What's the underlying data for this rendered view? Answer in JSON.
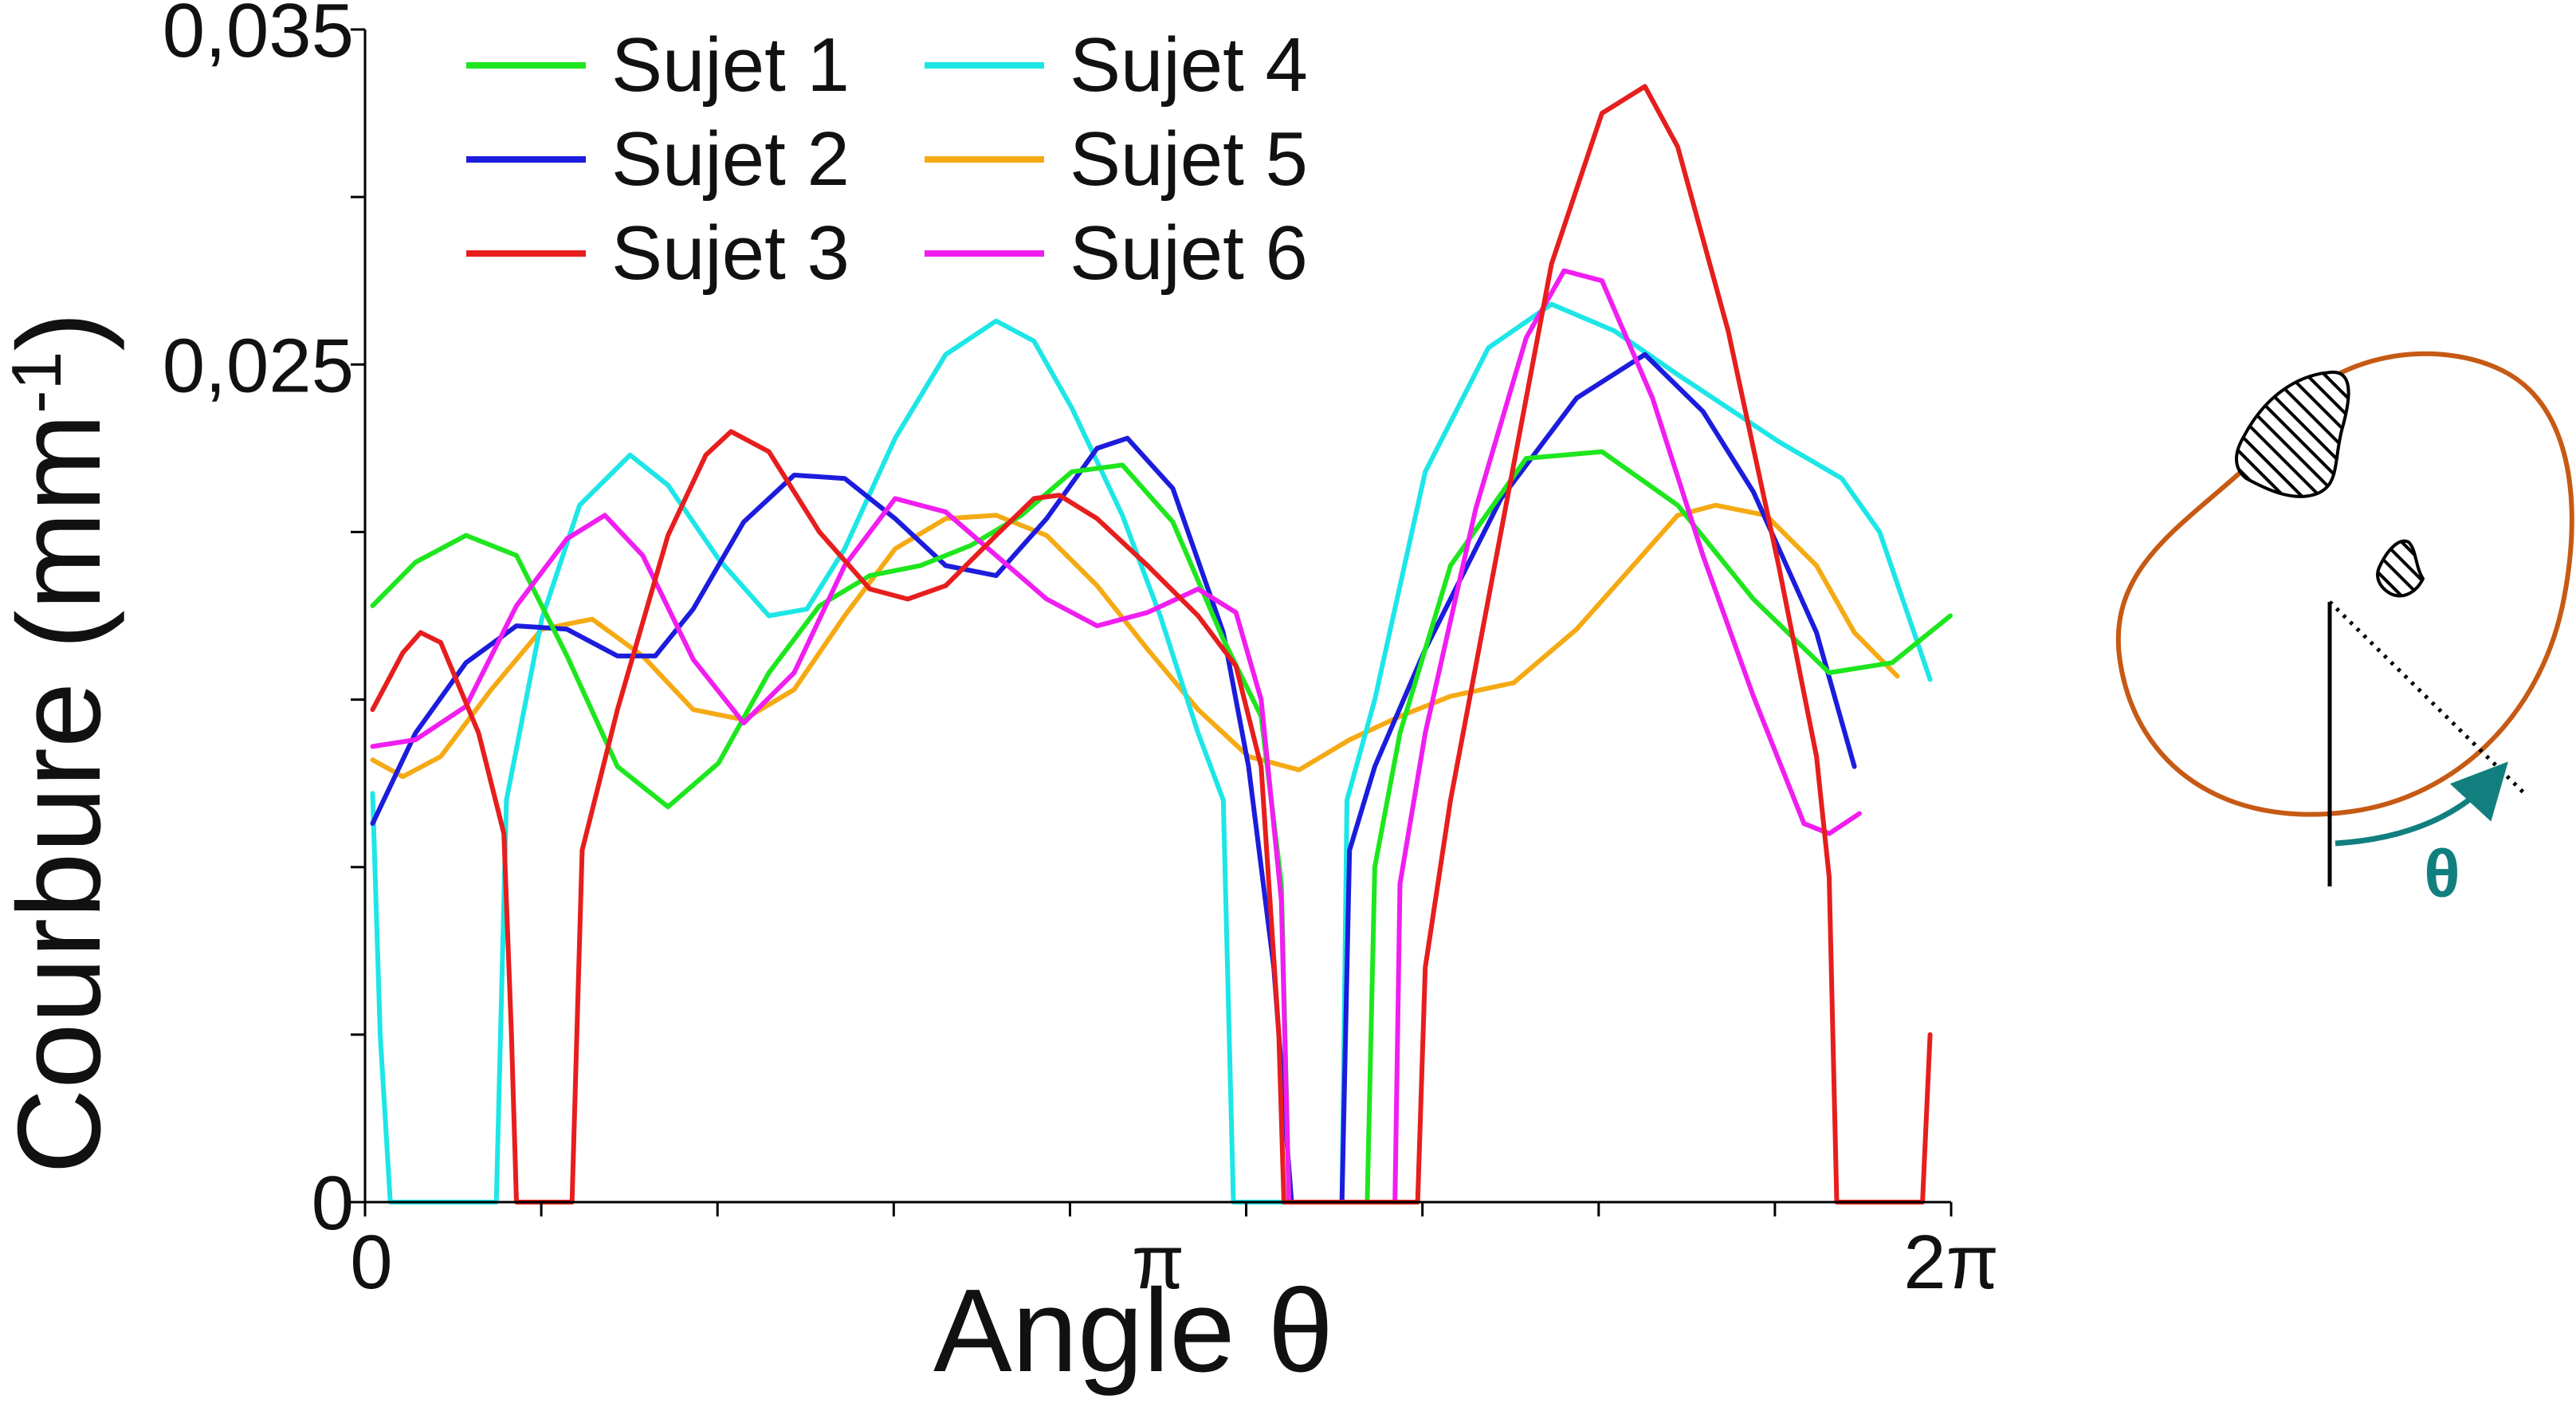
{
  "chart_data": {
    "type": "line",
    "xlabel": "Angle θ",
    "ylabel": "Courbure (mm",
    "ylabel_sup": "-1",
    "ylabel_close": ")",
    "xlim": [
      0,
      6.2832
    ],
    "ylim": [
      0,
      0.035
    ],
    "x_ticks": [
      {
        "value": 0,
        "label": "0"
      },
      {
        "value": 3.1416,
        "label": "π"
      },
      {
        "value": 6.2832,
        "label": "2π"
      }
    ],
    "y_ticks": [
      {
        "value": 0,
        "label": "0"
      },
      {
        "value": 0.025,
        "label": "0,025"
      },
      {
        "value": 0.035,
        "label": "0,035"
      }
    ],
    "legend_position": "top-left",
    "grid": false,
    "series": [
      {
        "name": "Sujet 1",
        "color": "#1ee61e",
        "points": [
          [
            0.03,
            0.0178
          ],
          [
            0.2,
            0.0191
          ],
          [
            0.4,
            0.0199
          ],
          [
            0.6,
            0.0193
          ],
          [
            0.8,
            0.0163
          ],
          [
            1.0,
            0.013
          ],
          [
            1.2,
            0.0118
          ],
          [
            1.4,
            0.0131
          ],
          [
            1.6,
            0.0158
          ],
          [
            1.8,
            0.0178
          ],
          [
            2.0,
            0.0187
          ],
          [
            2.2,
            0.019
          ],
          [
            2.4,
            0.0196
          ],
          [
            2.6,
            0.0205
          ],
          [
            2.8,
            0.0218
          ],
          [
            3.0,
            0.022
          ],
          [
            3.2,
            0.0203
          ],
          [
            3.4,
            0.0168
          ],
          [
            3.55,
            0.0145
          ],
          [
            3.63,
            0.0095
          ],
          [
            3.66,
            0
          ],
          [
            3.97,
            0
          ],
          [
            4.0,
            0.01
          ],
          [
            4.1,
            0.014
          ],
          [
            4.3,
            0.019
          ],
          [
            4.6,
            0.0222
          ],
          [
            4.9,
            0.0224
          ],
          [
            5.2,
            0.0208
          ],
          [
            5.5,
            0.018
          ],
          [
            5.8,
            0.0158
          ],
          [
            6.05,
            0.0161
          ],
          [
            6.28,
            0.0175
          ]
        ]
      },
      {
        "name": "Sujet 2",
        "color": "#1c1cdc",
        "points": [
          [
            0.03,
            0.0113
          ],
          [
            0.2,
            0.014
          ],
          [
            0.4,
            0.0161
          ],
          [
            0.6,
            0.0172
          ],
          [
            0.8,
            0.0171
          ],
          [
            1.0,
            0.0163
          ],
          [
            1.15,
            0.0163
          ],
          [
            1.3,
            0.0177
          ],
          [
            1.5,
            0.0203
          ],
          [
            1.7,
            0.0217
          ],
          [
            1.9,
            0.0216
          ],
          [
            2.1,
            0.0204
          ],
          [
            2.3,
            0.019
          ],
          [
            2.5,
            0.0187
          ],
          [
            2.7,
            0.0204
          ],
          [
            2.9,
            0.0225
          ],
          [
            3.02,
            0.0228
          ],
          [
            3.2,
            0.0213
          ],
          [
            3.4,
            0.017
          ],
          [
            3.5,
            0.013
          ],
          [
            3.6,
            0.007
          ],
          [
            3.67,
            0
          ],
          [
            3.87,
            0
          ],
          [
            3.9,
            0.0105
          ],
          [
            4.0,
            0.013
          ],
          [
            4.2,
            0.0165
          ],
          [
            4.5,
            0.021
          ],
          [
            4.8,
            0.024
          ],
          [
            5.07,
            0.0253
          ],
          [
            5.3,
            0.0236
          ],
          [
            5.5,
            0.0212
          ],
          [
            5.75,
            0.017
          ],
          [
            5.9,
            0.013
          ]
        ]
      },
      {
        "name": "Sujet 3",
        "color": "#e61e1e",
        "points": [
          [
            0.03,
            0.0147
          ],
          [
            0.15,
            0.0164
          ],
          [
            0.22,
            0.017
          ],
          [
            0.3,
            0.0167
          ],
          [
            0.45,
            0.014
          ],
          [
            0.55,
            0.011
          ],
          [
            0.58,
            0.005
          ],
          [
            0.6,
            0
          ],
          [
            0.82,
            0
          ],
          [
            0.86,
            0.0105
          ],
          [
            1.0,
            0.0147
          ],
          [
            1.2,
            0.0199
          ],
          [
            1.35,
            0.0223
          ],
          [
            1.45,
            0.023
          ],
          [
            1.6,
            0.0224
          ],
          [
            1.8,
            0.02
          ],
          [
            2.0,
            0.0183
          ],
          [
            2.15,
            0.018
          ],
          [
            2.3,
            0.0184
          ],
          [
            2.5,
            0.0199
          ],
          [
            2.65,
            0.021
          ],
          [
            2.75,
            0.0211
          ],
          [
            2.9,
            0.0204
          ],
          [
            3.1,
            0.019
          ],
          [
            3.3,
            0.0175
          ],
          [
            3.45,
            0.016
          ],
          [
            3.55,
            0.013
          ],
          [
            3.62,
            0.005
          ],
          [
            3.64,
            0
          ],
          [
            4.17,
            0
          ],
          [
            4.2,
            0.007
          ],
          [
            4.3,
            0.012
          ],
          [
            4.5,
            0.02
          ],
          [
            4.7,
            0.028
          ],
          [
            4.9,
            0.0325
          ],
          [
            5.07,
            0.0333
          ],
          [
            5.2,
            0.0315
          ],
          [
            5.4,
            0.026
          ],
          [
            5.6,
            0.019
          ],
          [
            5.75,
            0.0133
          ],
          [
            5.8,
            0.0097
          ],
          [
            5.83,
            0
          ],
          [
            6.17,
            0
          ],
          [
            6.2,
            0.005
          ]
        ]
      },
      {
        "name": "Sujet 4",
        "color": "#1ee6e6",
        "points": [
          [
            0.03,
            0.0122
          ],
          [
            0.06,
            0.005
          ],
          [
            0.1,
            0
          ],
          [
            0.52,
            0
          ],
          [
            0.56,
            0.012
          ],
          [
            0.7,
            0.0174
          ],
          [
            0.85,
            0.0208
          ],
          [
            1.05,
            0.0223
          ],
          [
            1.2,
            0.0214
          ],
          [
            1.4,
            0.0192
          ],
          [
            1.6,
            0.0175
          ],
          [
            1.75,
            0.0177
          ],
          [
            1.9,
            0.0195
          ],
          [
            2.1,
            0.0228
          ],
          [
            2.3,
            0.0253
          ],
          [
            2.5,
            0.0263
          ],
          [
            2.65,
            0.0257
          ],
          [
            2.8,
            0.0237
          ],
          [
            3.0,
            0.0205
          ],
          [
            3.15,
            0.0175
          ],
          [
            3.3,
            0.014
          ],
          [
            3.4,
            0.012
          ],
          [
            3.44,
            0
          ],
          [
            3.87,
            0
          ],
          [
            3.89,
            0.012
          ],
          [
            4.0,
            0.015
          ],
          [
            4.2,
            0.0218
          ],
          [
            4.45,
            0.0255
          ],
          [
            4.7,
            0.0268
          ],
          [
            4.95,
            0.026
          ],
          [
            5.2,
            0.0247
          ],
          [
            5.4,
            0.0237
          ],
          [
            5.6,
            0.0227
          ],
          [
            5.85,
            0.0216
          ],
          [
            6.0,
            0.02
          ],
          [
            6.15,
            0.0167
          ],
          [
            6.2,
            0.0156
          ]
        ]
      },
      {
        "name": "Sujet 5",
        "color": "#f5aa14",
        "points": [
          [
            0.03,
            0.0132
          ],
          [
            0.15,
            0.0127
          ],
          [
            0.3,
            0.0133
          ],
          [
            0.5,
            0.0153
          ],
          [
            0.7,
            0.0171
          ],
          [
            0.9,
            0.0174
          ],
          [
            1.1,
            0.0163
          ],
          [
            1.3,
            0.0147
          ],
          [
            1.5,
            0.0144
          ],
          [
            1.7,
            0.0153
          ],
          [
            1.9,
            0.0175
          ],
          [
            2.1,
            0.0195
          ],
          [
            2.3,
            0.0204
          ],
          [
            2.5,
            0.0205
          ],
          [
            2.7,
            0.0199
          ],
          [
            2.9,
            0.0184
          ],
          [
            3.1,
            0.0165
          ],
          [
            3.3,
            0.0147
          ],
          [
            3.5,
            0.0133
          ],
          [
            3.7,
            0.0129
          ],
          [
            3.9,
            0.0138
          ],
          [
            4.1,
            0.0145
          ],
          [
            4.3,
            0.0151
          ],
          [
            4.55,
            0.0155
          ],
          [
            4.8,
            0.0171
          ],
          [
            5.0,
            0.0188
          ],
          [
            5.2,
            0.0205
          ],
          [
            5.35,
            0.0208
          ],
          [
            5.55,
            0.0205
          ],
          [
            5.75,
            0.019
          ],
          [
            5.9,
            0.017
          ],
          [
            6.07,
            0.0157
          ]
        ]
      },
      {
        "name": "Sujet 6",
        "color": "#f01ef0",
        "points": [
          [
            0.03,
            0.0136
          ],
          [
            0.2,
            0.0138
          ],
          [
            0.4,
            0.0148
          ],
          [
            0.6,
            0.0178
          ],
          [
            0.8,
            0.0198
          ],
          [
            0.95,
            0.0205
          ],
          [
            1.1,
            0.0193
          ],
          [
            1.3,
            0.0162
          ],
          [
            1.5,
            0.0143
          ],
          [
            1.7,
            0.0158
          ],
          [
            1.9,
            0.019
          ],
          [
            2.1,
            0.021
          ],
          [
            2.3,
            0.0206
          ],
          [
            2.5,
            0.0193
          ],
          [
            2.7,
            0.018
          ],
          [
            2.9,
            0.0172
          ],
          [
            3.1,
            0.0176
          ],
          [
            3.3,
            0.0183
          ],
          [
            3.45,
            0.0176
          ],
          [
            3.55,
            0.015
          ],
          [
            3.63,
            0.009
          ],
          [
            3.66,
            0
          ],
          [
            4.08,
            0
          ],
          [
            4.1,
            0.0095
          ],
          [
            4.2,
            0.014
          ],
          [
            4.4,
            0.0207
          ],
          [
            4.6,
            0.0258
          ],
          [
            4.75,
            0.0278
          ],
          [
            4.9,
            0.0275
          ],
          [
            5.1,
            0.024
          ],
          [
            5.3,
            0.0193
          ],
          [
            5.5,
            0.0151
          ],
          [
            5.7,
            0.0113
          ],
          [
            5.8,
            0.011
          ],
          [
            5.92,
            0.0116
          ]
        ]
      }
    ]
  }
}
